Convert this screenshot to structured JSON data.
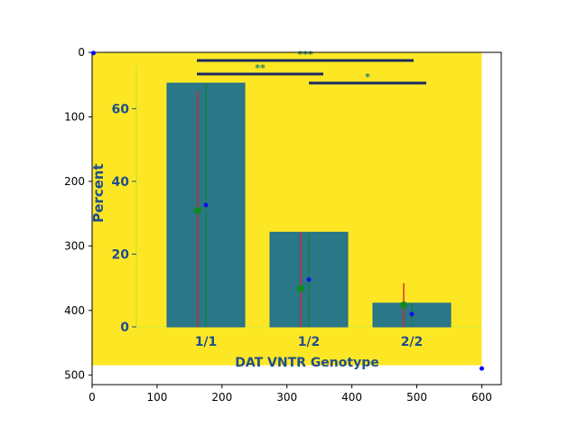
{
  "chart_data": {
    "type": "bar",
    "outer_axes": {
      "xlim": [
        0,
        630
      ],
      "ylim": [
        515,
        0
      ],
      "xticks": [
        "0",
        "100",
        "200",
        "300",
        "400",
        "500",
        "600"
      ],
      "yticks": [
        "0",
        "100",
        "200",
        "300",
        "400",
        "500"
      ]
    },
    "image": {
      "extent": [
        0,
        600,
        0,
        485
      ],
      "background_color": "#fde725",
      "bar_color": "#2a7788",
      "bar_edge_color": "#1f6a8c",
      "text_color": "#1f4e8c"
    },
    "inner_chart": {
      "xlabel": "DAT VNTR Genotype",
      "ylabel": "Percent",
      "categories": [
        "1/1",
        "1/2",
        "2/2"
      ],
      "values": [
        67,
        26,
        6.5
      ],
      "ylim": [
        0,
        72
      ],
      "yticks": [
        "0",
        "20",
        "40",
        "60"
      ],
      "error_bars": [
        {
          "category": "1/1",
          "red": [
            0,
            65
          ],
          "green": [
            0,
            67
          ],
          "green_point": 32,
          "blue_point": 33.5
        },
        {
          "category": "1/2",
          "red": [
            0,
            26
          ],
          "green": [
            0,
            26
          ],
          "green_point": 10.5,
          "blue_point": 13
        },
        {
          "category": "2/2",
          "red": [
            0,
            12
          ],
          "green": [
            0,
            6.5
          ],
          "green_point": 6,
          "blue_point": 3.5
        }
      ],
      "significance": [
        {
          "label": "***",
          "from": "1/1",
          "to": "2/2"
        },
        {
          "label": "**",
          "from": "1/1",
          "to": "1/2"
        },
        {
          "label": "*",
          "from": "1/2",
          "to": "2/2"
        }
      ]
    },
    "markers": [
      {
        "x": 2,
        "y": 1,
        "color": "#0000ff"
      },
      {
        "x": 600,
        "y": 490,
        "color": "#0000ff"
      }
    ]
  }
}
